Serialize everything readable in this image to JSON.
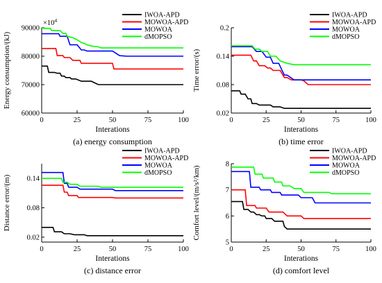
{
  "chart_data": [
    {
      "type": "line",
      "caption": "(a) energy consumption",
      "xlabel": "Interations",
      "ylabel": "Energy consumption/(kJ)",
      "multiplier": "×10",
      "multiplier_exp": "4",
      "xlim": [
        0,
        100
      ],
      "ylim": [
        60000,
        90000
      ],
      "xticks": [
        0,
        25,
        50,
        75,
        100
      ],
      "yticks": [
        60000,
        70000,
        80000,
        90000
      ],
      "ytick_labels": [
        "60000",
        "70000",
        "80000",
        "90000"
      ],
      "legend": "top-right",
      "series": [
        {
          "name": "IWOA-APD",
          "color": "#000000",
          "x": [
            0,
            4,
            5,
            9,
            11,
            13,
            14,
            16,
            17,
            20,
            21,
            24,
            28,
            35,
            38,
            40,
            100
          ],
          "y": [
            76500,
            76500,
            74300,
            74300,
            74000,
            74000,
            73000,
            73000,
            72500,
            72500,
            72000,
            72000,
            71200,
            71200,
            70500,
            70000,
            70000
          ]
        },
        {
          "name": "MOWOA-APD",
          "color": "#ff0000",
          "x": [
            0,
            10,
            11,
            15,
            16,
            20,
            22,
            27,
            28,
            50,
            51,
            100
          ],
          "y": [
            82700,
            82700,
            80200,
            80200,
            79500,
            79500,
            78500,
            78500,
            77500,
            77500,
            75500,
            75500
          ]
        },
        {
          "name": "MOWOA",
          "color": "#0000ff",
          "x": [
            0,
            12,
            13,
            18,
            20,
            25,
            28,
            30,
            32,
            50,
            55,
            60,
            100
          ],
          "y": [
            87900,
            87900,
            87000,
            87000,
            84000,
            84000,
            82200,
            82200,
            81800,
            81800,
            80200,
            80000,
            80000
          ]
        },
        {
          "name": "dMOPSO",
          "color": "#00ff00",
          "x": [
            0,
            6,
            7,
            13,
            15,
            17,
            18,
            22,
            24,
            26,
            28,
            30,
            32,
            36,
            40,
            42,
            100
          ],
          "y": [
            89800,
            89800,
            89000,
            89000,
            88000,
            88000,
            87000,
            86500,
            86000,
            85500,
            84800,
            84500,
            84000,
            83500,
            83300,
            82900,
            82900
          ]
        }
      ]
    },
    {
      "type": "line",
      "caption": "(b) time error",
      "xlabel": "Interations",
      "ylabel": "Time error/(s)",
      "xlim": [
        0,
        100
      ],
      "ylim": [
        0.02,
        0.2
      ],
      "xticks": [
        0,
        25,
        50,
        75,
        100
      ],
      "yticks": [
        0.02,
        0.08,
        0.14,
        0.2
      ],
      "ytick_labels": [
        "0.02",
        "0.08",
        "0.14",
        "0.2"
      ],
      "legend": "top-right",
      "series": [
        {
          "name": "IWOA-APD",
          "color": "#000000",
          "x": [
            0,
            6,
            7,
            10,
            12,
            14,
            15,
            18,
            20,
            28,
            30,
            35,
            38,
            40,
            100
          ],
          "y": [
            0.067,
            0.067,
            0.06,
            0.06,
            0.05,
            0.05,
            0.04,
            0.04,
            0.037,
            0.037,
            0.033,
            0.033,
            0.03,
            0.03,
            0.03
          ]
        },
        {
          "name": "MOWOA-APD",
          "color": "#ff0000",
          "x": [
            0,
            14,
            16,
            18,
            20,
            24,
            26,
            28,
            30,
            35,
            38,
            40,
            43,
            50,
            52,
            55,
            100
          ],
          "y": [
            0.142,
            0.142,
            0.13,
            0.13,
            0.12,
            0.12,
            0.115,
            0.115,
            0.11,
            0.11,
            0.095,
            0.095,
            0.09,
            0.09,
            0.088,
            0.08,
            0.08
          ]
        },
        {
          "name": "MOWOA",
          "color": "#0000ff",
          "x": [
            0,
            15,
            18,
            22,
            25,
            28,
            30,
            34,
            38,
            40,
            45,
            100
          ],
          "y": [
            0.16,
            0.16,
            0.15,
            0.15,
            0.138,
            0.138,
            0.125,
            0.125,
            0.1,
            0.1,
            0.09,
            0.09
          ]
        },
        {
          "name": "dMOPSO",
          "color": "#00ff00",
          "x": [
            0,
            15,
            17,
            20,
            22,
            26,
            28,
            32,
            35,
            40,
            45,
            100
          ],
          "y": [
            0.162,
            0.162,
            0.155,
            0.155,
            0.15,
            0.15,
            0.14,
            0.14,
            0.13,
            0.125,
            0.122,
            0.122
          ]
        }
      ]
    },
    {
      "type": "line",
      "caption": "(c) distance error",
      "xlabel": "Interations",
      "ylabel": "Distance error/(m)",
      "xlim": [
        0,
        100
      ],
      "ylim": [
        0.01,
        0.17
      ],
      "xticks": [
        0,
        25,
        50,
        75,
        100
      ],
      "yticks": [
        0.02,
        0.08,
        0.14
      ],
      "ytick_labels": [
        "0.02",
        "0.08",
        "0.14"
      ],
      "legend": "top-right",
      "series": [
        {
          "name": "IWOA-APD",
          "color": "#000000",
          "x": [
            0,
            8,
            9,
            14,
            16,
            20,
            23,
            30,
            32,
            40,
            100
          ],
          "y": [
            0.04,
            0.04,
            0.031,
            0.031,
            0.027,
            0.027,
            0.025,
            0.025,
            0.023,
            0.023,
            0.023
          ]
        },
        {
          "name": "MOWOA-APD",
          "color": "#ff0000",
          "x": [
            0,
            15,
            16,
            18,
            19,
            25,
            26,
            50,
            52,
            100
          ],
          "y": [
            0.126,
            0.126,
            0.112,
            0.112,
            0.105,
            0.105,
            0.101,
            0.101,
            0.1,
            0.1
          ]
        },
        {
          "name": "MOWOA",
          "color": "#0000ff",
          "x": [
            0,
            15,
            16,
            18,
            19,
            25,
            27,
            50,
            52,
            100
          ],
          "y": [
            0.152,
            0.152,
            0.13,
            0.13,
            0.122,
            0.122,
            0.118,
            0.118,
            0.115,
            0.115
          ]
        },
        {
          "name": "dMOPSO",
          "color": "#00ff00",
          "x": [
            0,
            14,
            15,
            18,
            20,
            25,
            27,
            40,
            42,
            100
          ],
          "y": [
            0.14,
            0.14,
            0.132,
            0.132,
            0.128,
            0.128,
            0.124,
            0.124,
            0.122,
            0.122
          ]
        }
      ]
    },
    {
      "type": "line",
      "caption": "(d) comfort level",
      "xlabel": "Interations",
      "ylabel": "Comfort level/(m/s²/km)",
      "xlim": [
        0,
        100
      ],
      "ylim": [
        5,
        8
      ],
      "xticks": [
        0,
        25,
        50,
        75,
        100
      ],
      "yticks": [
        5,
        6,
        7,
        8
      ],
      "ytick_labels": [
        "5",
        "6",
        "7",
        "8"
      ],
      "legend": "top-right",
      "series": [
        {
          "name": "IWOA-APD",
          "color": "#000000",
          "x": [
            0,
            8,
            9,
            12,
            14,
            16,
            18,
            20,
            22,
            24,
            25,
            29,
            31,
            37,
            38,
            40,
            100
          ],
          "y": [
            6.55,
            6.55,
            6.25,
            6.25,
            6.15,
            6.15,
            6.05,
            6.05,
            6.0,
            6.0,
            5.9,
            5.9,
            5.8,
            5.8,
            5.6,
            5.5,
            5.5
          ]
        },
        {
          "name": "MOWOA-APD",
          "color": "#ff0000",
          "x": [
            0,
            10,
            11,
            17,
            18,
            25,
            27,
            37,
            40,
            50,
            52,
            100
          ],
          "y": [
            7.0,
            7.0,
            6.4,
            6.4,
            6.3,
            6.3,
            6.15,
            6.15,
            6.0,
            6.0,
            5.9,
            5.9
          ]
        },
        {
          "name": "MOWOA",
          "color": "#0000ff",
          "x": [
            0,
            13,
            14,
            20,
            21,
            28,
            29,
            35,
            36,
            48,
            50,
            58,
            60,
            100
          ],
          "y": [
            7.7,
            7.7,
            7.1,
            7.1,
            7.0,
            7.0,
            6.9,
            6.9,
            6.8,
            6.8,
            6.7,
            6.7,
            6.5,
            6.5
          ]
        },
        {
          "name": "dMOPSO",
          "color": "#00ff00",
          "x": [
            0,
            16,
            17,
            22,
            23,
            30,
            31,
            36,
            37,
            42,
            45,
            50,
            52,
            70,
            72,
            100
          ],
          "y": [
            7.87,
            7.87,
            7.6,
            7.6,
            7.45,
            7.45,
            7.3,
            7.3,
            7.15,
            7.15,
            7.05,
            7.05,
            6.9,
            6.9,
            6.85,
            6.85
          ]
        }
      ]
    }
  ]
}
